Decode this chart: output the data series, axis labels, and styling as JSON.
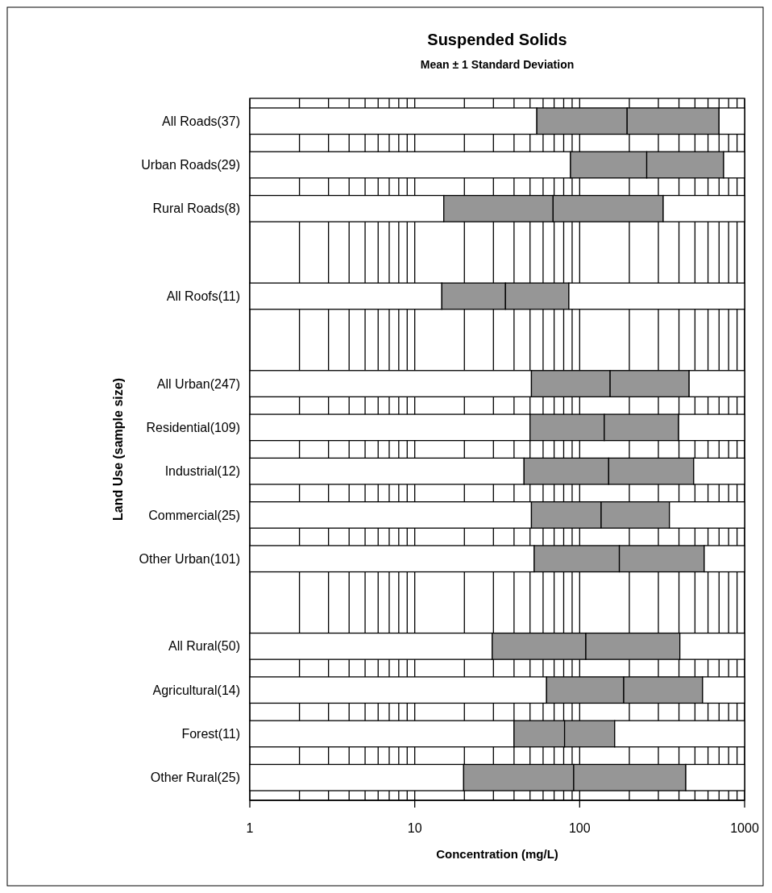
{
  "chart_data": {
    "type": "bar",
    "title": "Suspended Solids",
    "subtitle": "Mean ± 1 Standard Deviation",
    "xlabel": "Concentration (mg/L)",
    "ylabel": "Land Use (sample size)",
    "orientation": "horizontal",
    "stacked": true,
    "log": "x",
    "grid": "x",
    "categories": [
      "All Roads(37)",
      "Urban Roads(29)",
      "Rural Roads(8)",
      null,
      "All Roofs(11)",
      null,
      "All Urban(247)",
      "Residential(109)",
      "Industrial(12)",
      "Commercial(25)",
      "Other Urban(101)",
      null,
      "All Rural(50)",
      "Agricultural(14)",
      "Forest(11)",
      "Other Rural(25)"
    ],
    "series": [
      {
        "color": "#ffffff",
        "values": [
          55,
          88,
          15,
          null,
          14.6,
          null,
          51,
          50,
          46,
          51,
          53,
          null,
          29.5,
          63,
          40,
          19.8
        ]
      },
      {
        "color": "#969696",
        "values": [
          139,
          167,
          54,
          null,
          20.9,
          null,
          102,
          91,
          104,
          84,
          121,
          null,
          79.5,
          122,
          41,
          72.2
        ]
      },
      {
        "color": "#969696",
        "values": [
          506,
          491,
          252,
          null,
          50.5,
          null,
          308,
          257,
          341,
          215,
          395,
          null,
          296,
          371,
          82,
          348
        ]
      },
      {
        "color": "#ffffff",
        "values": [
          300,
          254,
          679,
          null,
          914,
          null,
          539,
          602,
          509,
          650,
          431,
          null,
          595,
          444,
          837,
          560
        ]
      }
    ],
    "xlim": [
      1,
      1000
    ],
    "xticks": [
      1,
      {
        "value": 2,
        "label": null
      },
      {
        "value": 3,
        "label": null
      },
      {
        "value": 4,
        "label": null
      },
      {
        "value": 5,
        "label": null
      },
      {
        "value": 6,
        "label": null
      },
      {
        "value": 7,
        "label": null
      },
      {
        "value": 8,
        "label": null
      },
      {
        "value": 9,
        "label": null
      },
      10,
      {
        "value": 20,
        "label": null
      },
      {
        "value": 30,
        "label": null
      },
      {
        "value": 40,
        "label": null
      },
      {
        "value": 50,
        "label": null
      },
      {
        "value": 60,
        "label": null
      },
      {
        "value": 70,
        "label": null
      },
      {
        "value": 80,
        "label": null
      },
      {
        "value": 90,
        "label": null
      },
      100,
      {
        "value": 200,
        "label": null
      },
      {
        "value": 300,
        "label": null
      },
      {
        "value": 400,
        "label": null
      },
      {
        "value": 500,
        "label": null
      },
      {
        "value": 600,
        "label": null
      },
      {
        "value": 700,
        "label": null
      },
      {
        "value": 800,
        "label": null
      },
      {
        "value": 900,
        "label": null
      },
      1000
    ]
  }
}
